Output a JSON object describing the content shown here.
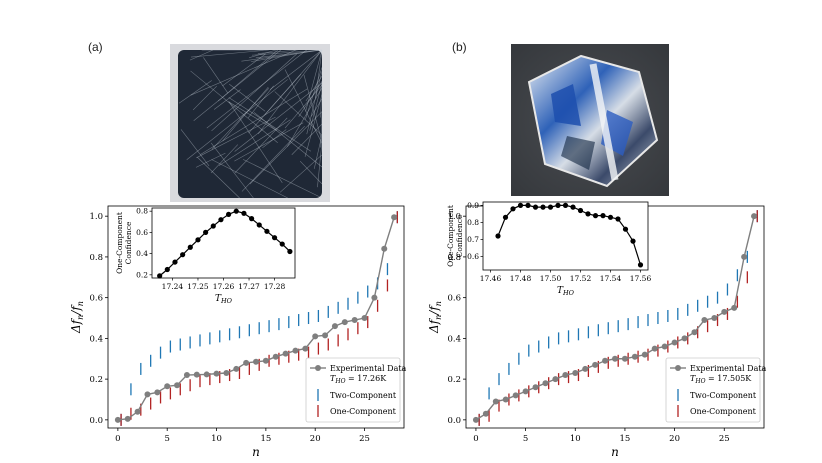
{
  "panels": [
    {
      "label": "(a)",
      "photo_icon": "crystal-photo-scratched-square"
    },
    {
      "label": "(b)",
      "photo_icon": "crystal-photo-hexagonal-reflective"
    }
  ],
  "colors": {
    "experimental": "#7f7f7f",
    "two_component": "#1f77b4",
    "one_component": "#b22222",
    "inset": "#000000"
  },
  "chart_data": [
    {
      "type": "scatter",
      "panel": "(a)",
      "xlabel": "n",
      "ylabel": "Δf_n/f_n",
      "xlim": [
        -1,
        29
      ],
      "ylim": [
        -0.04,
        1.05
      ],
      "xticks": [
        "0",
        "5",
        "10",
        "15",
        "20",
        "25"
      ],
      "yticks": [
        "0.0",
        "0.2",
        "0.4",
        "0.6",
        "0.8",
        "1.0"
      ],
      "legend_position": "lower-right",
      "legend": {
        "experimental": "Experimental Data",
        "t_ho": "T_HO = 17.26K",
        "two": "Two-Component",
        "one": "One-Component"
      },
      "x": [
        0,
        1,
        2,
        3,
        4,
        5,
        6,
        7,
        8,
        9,
        10,
        11,
        12,
        13,
        14,
        15,
        16,
        17,
        18,
        19,
        20,
        21,
        22,
        23,
        24,
        25,
        26,
        27,
        28
      ],
      "series": [
        {
          "name": "Experimental Data",
          "values": [
            0.0,
            0.005,
            0.04,
            0.125,
            0.135,
            0.165,
            0.17,
            0.22,
            0.222,
            0.223,
            0.227,
            0.23,
            0.25,
            0.28,
            0.285,
            0.29,
            0.31,
            0.325,
            0.34,
            0.35,
            0.41,
            0.415,
            0.46,
            0.48,
            0.49,
            0.5,
            0.6,
            0.84,
            0.995
          ]
        },
        {
          "name": "Two-Component",
          "values": [
            0.0,
            0.15,
            0.25,
            0.29,
            0.33,
            0.36,
            0.37,
            0.38,
            0.39,
            0.4,
            0.41,
            0.42,
            0.43,
            0.44,
            0.45,
            0.46,
            0.47,
            0.48,
            0.49,
            0.5,
            0.51,
            0.53,
            0.55,
            0.57,
            0.6,
            0.63,
            0.67,
            0.74,
            0.995
          ]
        },
        {
          "name": "One-Component",
          "values": [
            0.0,
            0.03,
            0.05,
            0.08,
            0.11,
            0.13,
            0.15,
            0.17,
            0.19,
            0.2,
            0.21,
            0.22,
            0.23,
            0.25,
            0.27,
            0.29,
            0.3,
            0.31,
            0.32,
            0.33,
            0.35,
            0.37,
            0.39,
            0.42,
            0.45,
            0.48,
            0.56,
            0.66,
            0.995
          ]
        }
      ],
      "inset": {
        "type": "line",
        "xlabel": "T_HO",
        "ylabel": "One-Component Confidence",
        "xlim": [
          17.232,
          17.288
        ],
        "ylim": [
          0.17,
          0.83
        ],
        "xticks": [
          "17.24",
          "17.25",
          "17.26",
          "17.27",
          "17.28"
        ],
        "yticks": [
          "0.2",
          "0.4",
          "0.6",
          "0.8"
        ],
        "x": [
          17.235,
          17.238,
          17.241,
          17.244,
          17.247,
          17.25,
          17.253,
          17.256,
          17.259,
          17.262,
          17.265,
          17.268,
          17.271,
          17.274,
          17.277,
          17.28,
          17.283,
          17.286
        ],
        "y": [
          0.19,
          0.25,
          0.32,
          0.39,
          0.46,
          0.53,
          0.6,
          0.66,
          0.72,
          0.77,
          0.8,
          0.78,
          0.73,
          0.67,
          0.61,
          0.55,
          0.49,
          0.42
        ]
      }
    },
    {
      "type": "scatter",
      "panel": "(b)",
      "xlabel": "n",
      "ylabel": "Δf_n/f_n",
      "xlim": [
        -1,
        29
      ],
      "ylim": [
        -0.04,
        1.05
      ],
      "xticks": [
        "0",
        "5",
        "10",
        "15",
        "20",
        "25"
      ],
      "yticks": [
        "0.0",
        "0.2",
        "0.4",
        "0.6",
        "0.8",
        "1.0"
      ],
      "legend_position": "lower-right",
      "legend": {
        "experimental": "Experimental Data",
        "t_ho": "T_HO = 17.505K",
        "two": "Two-Component",
        "one": "One-Component"
      },
      "x": [
        0,
        1,
        2,
        3,
        4,
        5,
        6,
        7,
        8,
        9,
        10,
        11,
        12,
        13,
        14,
        15,
        16,
        17,
        18,
        19,
        20,
        21,
        22,
        23,
        24,
        25,
        26,
        27,
        28
      ],
      "series": [
        {
          "name": "Experimental Data",
          "values": [
            0.0,
            0.03,
            0.09,
            0.1,
            0.12,
            0.14,
            0.16,
            0.18,
            0.2,
            0.22,
            0.23,
            0.25,
            0.27,
            0.29,
            0.3,
            0.3,
            0.31,
            0.32,
            0.35,
            0.36,
            0.38,
            0.4,
            0.43,
            0.49,
            0.5,
            0.53,
            0.55,
            0.8,
            1.0
          ]
        },
        {
          "name": "Two-Component",
          "values": [
            0.0,
            0.13,
            0.2,
            0.25,
            0.3,
            0.34,
            0.36,
            0.38,
            0.4,
            0.41,
            0.42,
            0.43,
            0.44,
            0.45,
            0.46,
            0.47,
            0.48,
            0.49,
            0.5,
            0.51,
            0.52,
            0.54,
            0.56,
            0.58,
            0.6,
            0.64,
            0.71,
            0.8,
            1.0
          ]
        },
        {
          "name": "One-Component",
          "values": [
            0.0,
            0.02,
            0.07,
            0.1,
            0.12,
            0.14,
            0.16,
            0.18,
            0.2,
            0.21,
            0.22,
            0.24,
            0.26,
            0.28,
            0.29,
            0.3,
            0.31,
            0.32,
            0.34,
            0.36,
            0.38,
            0.4,
            0.43,
            0.46,
            0.49,
            0.52,
            0.58,
            0.7,
            1.0
          ]
        }
      ],
      "inset": {
        "type": "line",
        "xlabel": "T_HO",
        "ylabel": "One-Component Confidence",
        "xlim": [
          17.455,
          17.565
        ],
        "ylim": [
          0.52,
          0.92
        ],
        "xticks": [
          "17.46",
          "17.48",
          "17.50",
          "17.52",
          "17.54",
          "17.56"
        ],
        "yticks": [
          "0.6",
          "0.7",
          "0.8",
          "0.9"
        ],
        "x": [
          17.465,
          17.47,
          17.475,
          17.48,
          17.485,
          17.49,
          17.495,
          17.5,
          17.505,
          17.51,
          17.515,
          17.52,
          17.525,
          17.53,
          17.535,
          17.54,
          17.545,
          17.55,
          17.555,
          17.56
        ],
        "y": [
          0.72,
          0.83,
          0.88,
          0.9,
          0.9,
          0.89,
          0.89,
          0.89,
          0.9,
          0.9,
          0.89,
          0.87,
          0.85,
          0.84,
          0.84,
          0.83,
          0.82,
          0.76,
          0.69,
          0.55
        ]
      }
    }
  ]
}
